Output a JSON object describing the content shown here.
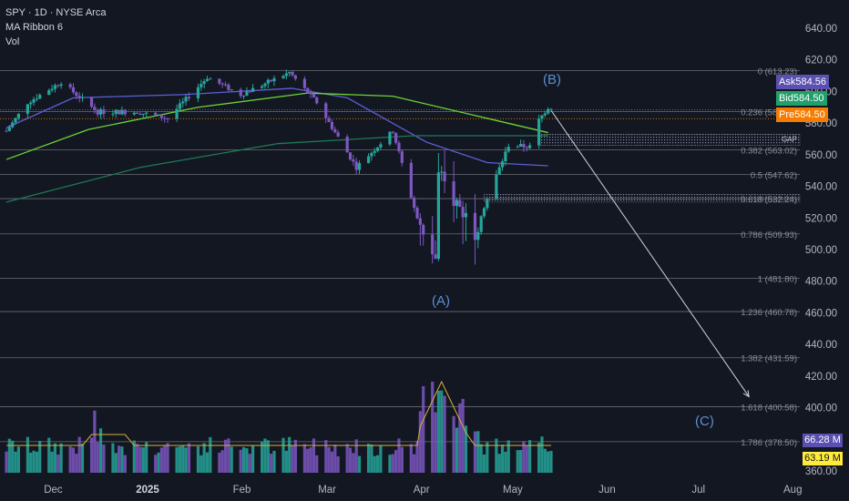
{
  "header": {
    "symbol_line": "SPY · 1D · NYSE Arca",
    "indicator_1": "MA Ribbon 6",
    "indicator_2": "Vol"
  },
  "quotes": {
    "ask": {
      "label": "Ask",
      "value": "584.56",
      "color": "#5b4fb0"
    },
    "bid": {
      "label": "Bid",
      "value": "584.50",
      "color": "#22a06b"
    },
    "pre": {
      "label": "Pre",
      "value": "584.50",
      "color": "#f57c00"
    }
  },
  "volume_tags": {
    "vol": {
      "value": "66.28 M",
      "color": "#5b4fb0"
    },
    "ma": {
      "value": "63.19 M",
      "color": "#ffeb3b"
    }
  },
  "wave_labels": {
    "a": "(A)",
    "b": "(B)",
    "c": "(C)"
  },
  "gap_label": "GAP",
  "colors": {
    "background": "#131722",
    "up": "#26a69a",
    "down": "#7e57c2",
    "ma_fast": "#5b5fd6",
    "ma_mid": "#6bd435",
    "ma_slow": "#1f7a55",
    "fib_line": "#787b86",
    "vol_ma": "#d4b03a"
  },
  "chart_data": {
    "type": "candlestick",
    "symbol": "SPY",
    "interval": "1D",
    "exchange": "NYSE Arca",
    "y_axis": {
      "ticks": [
        "640.00",
        "620.00",
        "600.00",
        "580.00",
        "560.00",
        "540.00",
        "520.00",
        "500.00",
        "480.00",
        "460.00",
        "440.00",
        "420.00",
        "400.00",
        "380.00",
        "360.00"
      ],
      "range": [
        360,
        640
      ],
      "scale": "linear"
    },
    "x_axis": {
      "ticks": [
        {
          "label": "Dec",
          "date": "2024-12-01"
        },
        {
          "label": "2025",
          "date": "2025-01-01",
          "bold": true
        },
        {
          "label": "Feb",
          "date": "2025-02-01"
        },
        {
          "label": "Mar",
          "date": "2025-03-01"
        },
        {
          "label": "Apr",
          "date": "2025-04-01"
        },
        {
          "label": "May",
          "date": "2025-05-01"
        },
        {
          "label": "Jun",
          "date": "2025-06-01"
        },
        {
          "label": "Jul",
          "date": "2025-07-01"
        },
        {
          "label": "Aug",
          "date": "2025-08-01"
        }
      ]
    },
    "fibonacci": [
      {
        "label": "0 (613.23)",
        "price": 613.23
      },
      {
        "label": "0.236 (587.34)",
        "price": 587.34
      },
      {
        "label": "0.382 (563.02)",
        "price": 563.02
      },
      {
        "label": "0.5 (547.62)",
        "price": 547.62
      },
      {
        "label": "0.618 (532.24)",
        "price": 532.24
      },
      {
        "label": "0.786 (509.93)",
        "price": 509.93
      },
      {
        "label": "1 (481.80)",
        "price": 481.8
      },
      {
        "label": "1.236 (460.78)",
        "price": 460.78
      },
      {
        "label": "1.382 (431.59)",
        "price": 431.59
      },
      {
        "label": "1.618 (400.58)",
        "price": 400.58
      },
      {
        "label": "1.786 (378.50)",
        "price": 378.5
      }
    ],
    "price_anchors": [
      {
        "date": "2024-11-18",
        "price": 575
      },
      {
        "date": "2024-11-25",
        "price": 593
      },
      {
        "date": "2024-12-06",
        "price": 606
      },
      {
        "date": "2024-12-18",
        "price": 587
      },
      {
        "date": "2024-12-31",
        "price": 587
      },
      {
        "date": "2025-01-10",
        "price": 583
      },
      {
        "date": "2025-01-23",
        "price": 609
      },
      {
        "date": "2025-02-03",
        "price": 598
      },
      {
        "date": "2025-02-19",
        "price": 612
      },
      {
        "date": "2025-02-28",
        "price": 593
      },
      {
        "date": "2025-03-13",
        "price": 552
      },
      {
        "date": "2025-03-25",
        "price": 575
      },
      {
        "date": "2025-04-04",
        "price": 506
      },
      {
        "date": "2025-04-08",
        "price": 495
      },
      {
        "date": "2025-04-09",
        "price": 546
      },
      {
        "date": "2025-04-21",
        "price": 513
      },
      {
        "date": "2025-05-02",
        "price": 566
      },
      {
        "date": "2025-05-09",
        "price": 565
      },
      {
        "date": "2025-05-12",
        "price": 582
      },
      {
        "date": "2025-05-15",
        "price": 590
      }
    ],
    "moving_averages": [
      {
        "key": "ma_fast",
        "points": [
          [
            "2024-11-18",
            577
          ],
          [
            "2024-12-10",
            596
          ],
          [
            "2025-01-15",
            598
          ],
          [
            "2025-02-20",
            602
          ],
          [
            "2025-03-10",
            596
          ],
          [
            "2025-04-05",
            568
          ],
          [
            "2025-04-25",
            555
          ],
          [
            "2025-05-15",
            553
          ]
        ]
      },
      {
        "key": "ma_mid",
        "points": [
          [
            "2024-11-18",
            557
          ],
          [
            "2024-12-15",
            576
          ],
          [
            "2025-01-20",
            590
          ],
          [
            "2025-02-25",
            599
          ],
          [
            "2025-03-25",
            597
          ],
          [
            "2025-04-25",
            583
          ],
          [
            "2025-05-15",
            574
          ]
        ]
      },
      {
        "key": "ma_slow",
        "points": [
          [
            "2024-11-18",
            530
          ],
          [
            "2025-01-01",
            552
          ],
          [
            "2025-02-15",
            567
          ],
          [
            "2025-04-01",
            572
          ],
          [
            "2025-05-15",
            572
          ]
        ]
      }
    ],
    "gaps": [
      {
        "label": "GAP",
        "from_date": "2025-05-12",
        "top": 573,
        "bottom": 566
      },
      {
        "from_date": "2025-04-24",
        "top": 535,
        "bottom": 530
      }
    ],
    "projection": {
      "from": {
        "date": "2025-05-16",
        "price": 588
      },
      "to": {
        "date": "2025-07-20",
        "price": 407
      }
    },
    "waves": [
      {
        "label": "(B)",
        "date": "2025-05-16",
        "price": 615
      },
      {
        "label": "(A)",
        "date": "2025-04-08",
        "price": 472
      },
      {
        "label": "(C)",
        "date": "2025-07-10",
        "price": 389
      }
    ],
    "last_price": 584.5
  }
}
